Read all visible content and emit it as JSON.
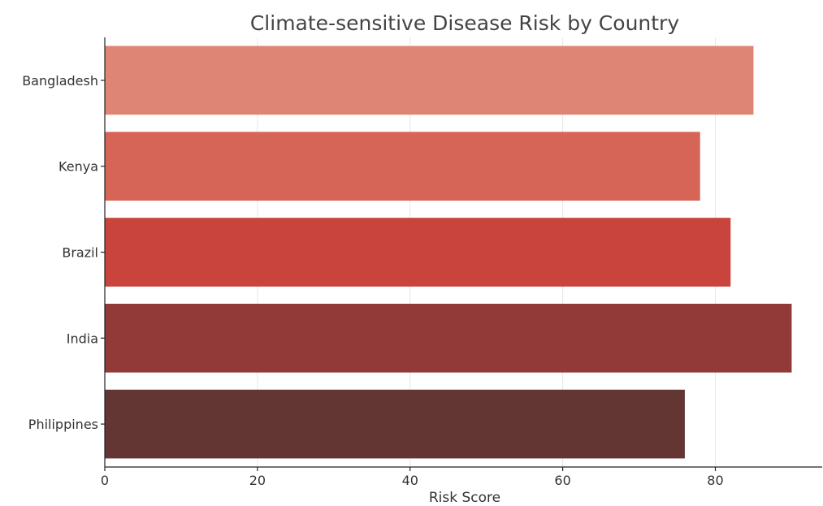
{
  "chart_data": {
    "type": "bar",
    "orientation": "horizontal",
    "title": "Climate-sensitive Disease Risk by Country",
    "xlabel": "Risk Score",
    "ylabel": "",
    "categories": [
      "Bangladesh",
      "Kenya",
      "Brazil",
      "India",
      "Philippines"
    ],
    "values": [
      85,
      78,
      82,
      90,
      76
    ],
    "colors": [
      "#df8575",
      "#d66558",
      "#c9443c",
      "#923a37",
      "#633634"
    ],
    "xlim": [
      0,
      94
    ],
    "xticks": [
      0,
      20,
      40,
      60,
      80
    ],
    "grid": true
  }
}
